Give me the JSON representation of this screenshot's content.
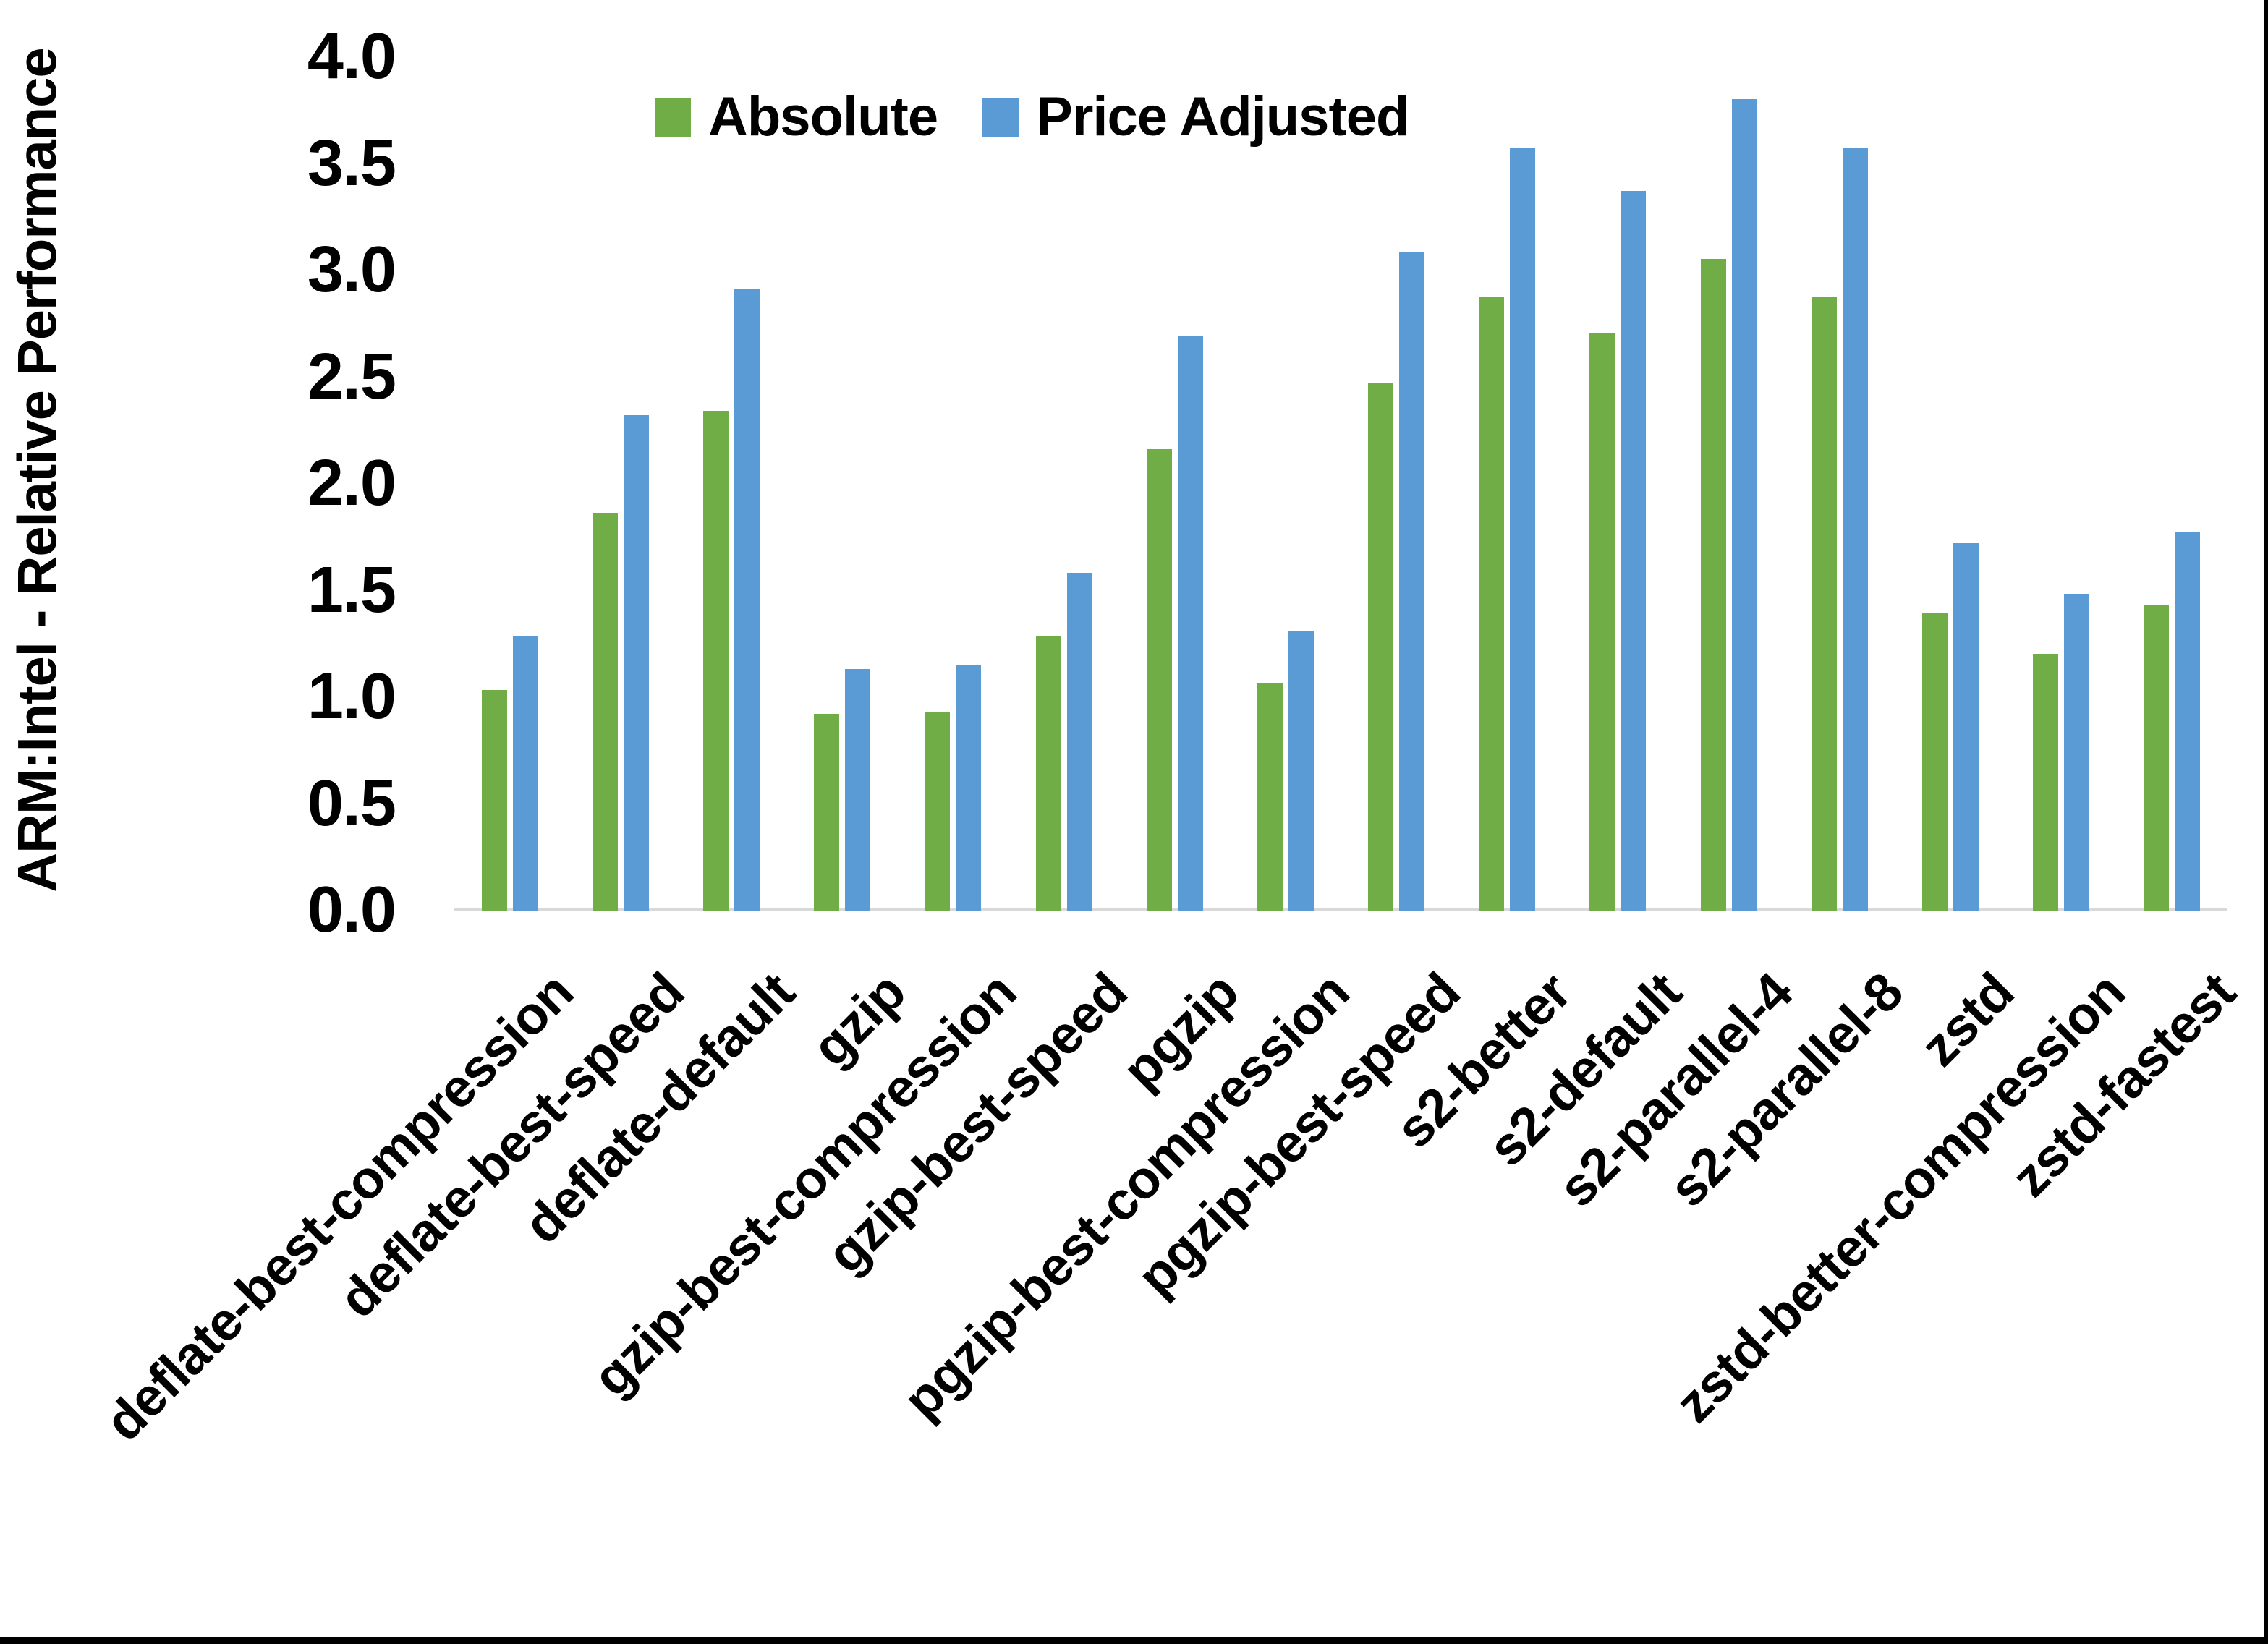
{
  "chart_data": {
    "type": "bar",
    "title": "",
    "xlabel": "",
    "ylabel": "ARM:Intel - Relative Performance",
    "ylim": [
      0.0,
      4.0
    ],
    "ytick_interval": 0.5,
    "ytick_labels": [
      "0.0",
      "0.5",
      "1.0",
      "1.5",
      "2.0",
      "2.5",
      "3.0",
      "3.5",
      "4.0"
    ],
    "grid": false,
    "legend_position": "top-center",
    "categories": [
      "deflate-best-compression",
      "deflate-best-speed",
      "deflate-default",
      "gzip",
      "gzip-best-compression",
      "gzip-best-speed",
      "pgzip",
      "pgzip-best-compression",
      "pgzip-best-speed",
      "s2-better",
      "s2-default",
      "s2-parallel-4",
      "s2-parallel-8",
      "zstd",
      "zstd-better-compression",
      "zstd-fastest"
    ],
    "series": [
      {
        "name": "Absolute",
        "color": "#70AD47",
        "values": [
          1.03,
          1.86,
          2.34,
          0.92,
          0.93,
          1.28,
          2.16,
          1.06,
          2.47,
          2.87,
          2.7,
          3.05,
          2.87,
          1.39,
          1.2,
          1.43
        ]
      },
      {
        "name": "Price Adjusted",
        "color": "#5B9BD5",
        "values": [
          1.28,
          2.32,
          2.91,
          1.13,
          1.15,
          1.58,
          2.69,
          1.31,
          3.08,
          3.57,
          3.37,
          3.8,
          3.57,
          1.72,
          1.48,
          1.77
        ]
      }
    ]
  },
  "colors": {
    "background": "#FFFFFF",
    "axis_line": "#D9D9D9",
    "text": "#000000",
    "frame_border": "#000000"
  }
}
